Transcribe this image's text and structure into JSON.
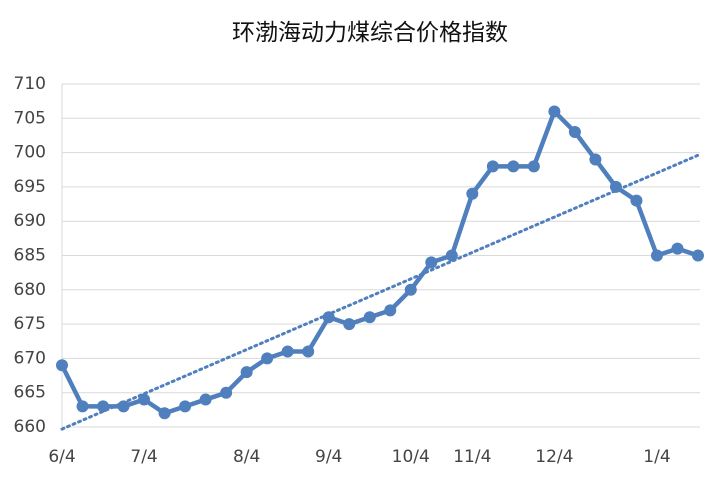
{
  "chart_data": {
    "type": "line",
    "title": "环渤海动力煤综合价格指数",
    "categories": [
      "6/4",
      null,
      null,
      null,
      "7/4",
      null,
      null,
      null,
      null,
      "8/4",
      null,
      null,
      null,
      "9/4",
      null,
      null,
      null,
      "10/4",
      null,
      null,
      "11/4",
      null,
      null,
      null,
      "12/4",
      null,
      null,
      null,
      null,
      "1/4",
      null,
      null
    ],
    "series": [
      {
        "name": "环渤海动力煤综合价格指数",
        "color": "#4f7fbc",
        "values": [
          669,
          663,
          663,
          663,
          664,
          662,
          663,
          664,
          665,
          668,
          670,
          671,
          671,
          676,
          675,
          676,
          677,
          680,
          684,
          685,
          694,
          698,
          698,
          698,
          706,
          703,
          699,
          695,
          693,
          685,
          686,
          685
        ]
      }
    ],
    "ylim": [
      660,
      710
    ],
    "yticks": [
      660,
      665,
      670,
      675,
      680,
      685,
      690,
      695,
      700,
      705,
      710
    ],
    "grid": true,
    "trendline": true
  }
}
